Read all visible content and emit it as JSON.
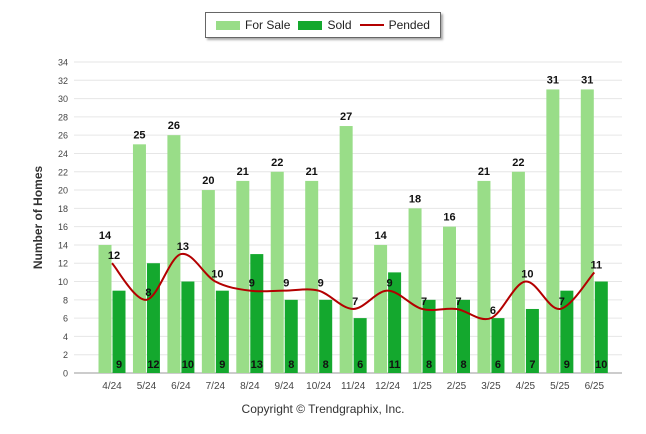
{
  "colors": {
    "for_sale": "#99dd88",
    "sold": "#14a82e",
    "pended": "#b30000",
    "grid": "#e6e6e6",
    "axis_text": "#444444"
  },
  "legend": {
    "for_sale": "For Sale",
    "sold": "Sold",
    "pended": "Pended"
  },
  "footer": "Copyright © Trendgraphix, Inc.",
  "chart_data": {
    "type": "bar",
    "title": "",
    "ylabel": "Number of Homes",
    "xlabel": "",
    "ylim": [
      0,
      34
    ],
    "ytick_step": 2,
    "grid": true,
    "legend_position": "top-center",
    "categories": [
      "4/24",
      "5/24",
      "6/24",
      "7/24",
      "8/24",
      "9/24",
      "10/24",
      "11/24",
      "12/24",
      "1/25",
      "2/25",
      "3/25",
      "4/25",
      "5/25",
      "6/25"
    ],
    "series": [
      {
        "name": "For Sale",
        "kind": "bar",
        "values": [
          14,
          25,
          26,
          20,
          21,
          22,
          21,
          27,
          14,
          18,
          16,
          21,
          22,
          31,
          31
        ]
      },
      {
        "name": "Sold",
        "kind": "bar",
        "values": [
          9,
          12,
          10,
          9,
          13,
          8,
          8,
          6,
          11,
          8,
          8,
          6,
          7,
          9,
          10
        ]
      },
      {
        "name": "Pended",
        "kind": "line",
        "values": [
          12,
          8,
          13,
          10,
          9,
          9,
          9,
          7,
          9,
          7,
          7,
          6,
          10,
          7,
          11
        ]
      }
    ]
  }
}
